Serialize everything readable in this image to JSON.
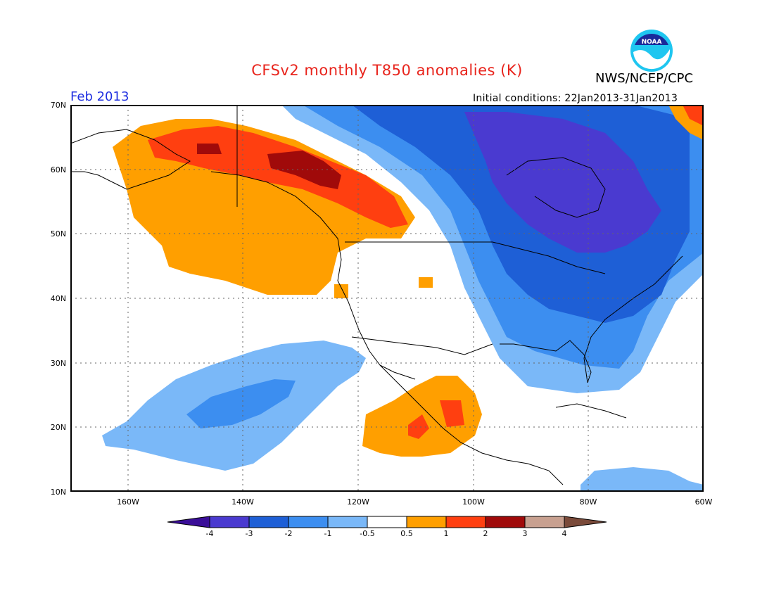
{
  "header": {
    "title": "CFSv2 monthly T850 anomalies (K)",
    "agency": "NWS/NCEP/CPC",
    "logo_text": "NOAA",
    "month": "Feb 2013",
    "initial_conditions": "Initial conditions: 22Jan2013-31Jan2013"
  },
  "map": {
    "lon_range": [
      -170,
      -60
    ],
    "lat_range": [
      10,
      70
    ],
    "lat_labels": [
      "70N",
      "60N",
      "50N",
      "40N",
      "30N",
      "20N",
      "10N"
    ],
    "lon_labels": [
      "160W",
      "140W",
      "120W",
      "100W",
      "80W",
      "60W"
    ],
    "gridlines": true
  },
  "colorbar": {
    "labels": [
      "-4",
      "-3",
      "-2",
      "-1",
      "-0.5",
      "0.5",
      "1",
      "2",
      "3",
      "4"
    ],
    "colors": [
      "#3a0e98",
      "#4a3ad0",
      "#1e5fd6",
      "#3c8ef0",
      "#7ab8f8",
      "#ffffff",
      "#ff9f00",
      "#ff3f10",
      "#a00a0a",
      "#c8a090",
      "#7a4a3a"
    ]
  },
  "anomaly_regions": [
    {
      "name": "alaska-warm",
      "level": "0.5"
    },
    {
      "name": "alaska-strong-warm",
      "level": "1"
    },
    {
      "name": "pacific-cold",
      "level": "-0.5"
    },
    {
      "name": "canada-cold",
      "level": "-2"
    },
    {
      "name": "hudson-bay-cold",
      "level": "-3"
    },
    {
      "name": "mexico-warm",
      "level": "0.5"
    }
  ]
}
